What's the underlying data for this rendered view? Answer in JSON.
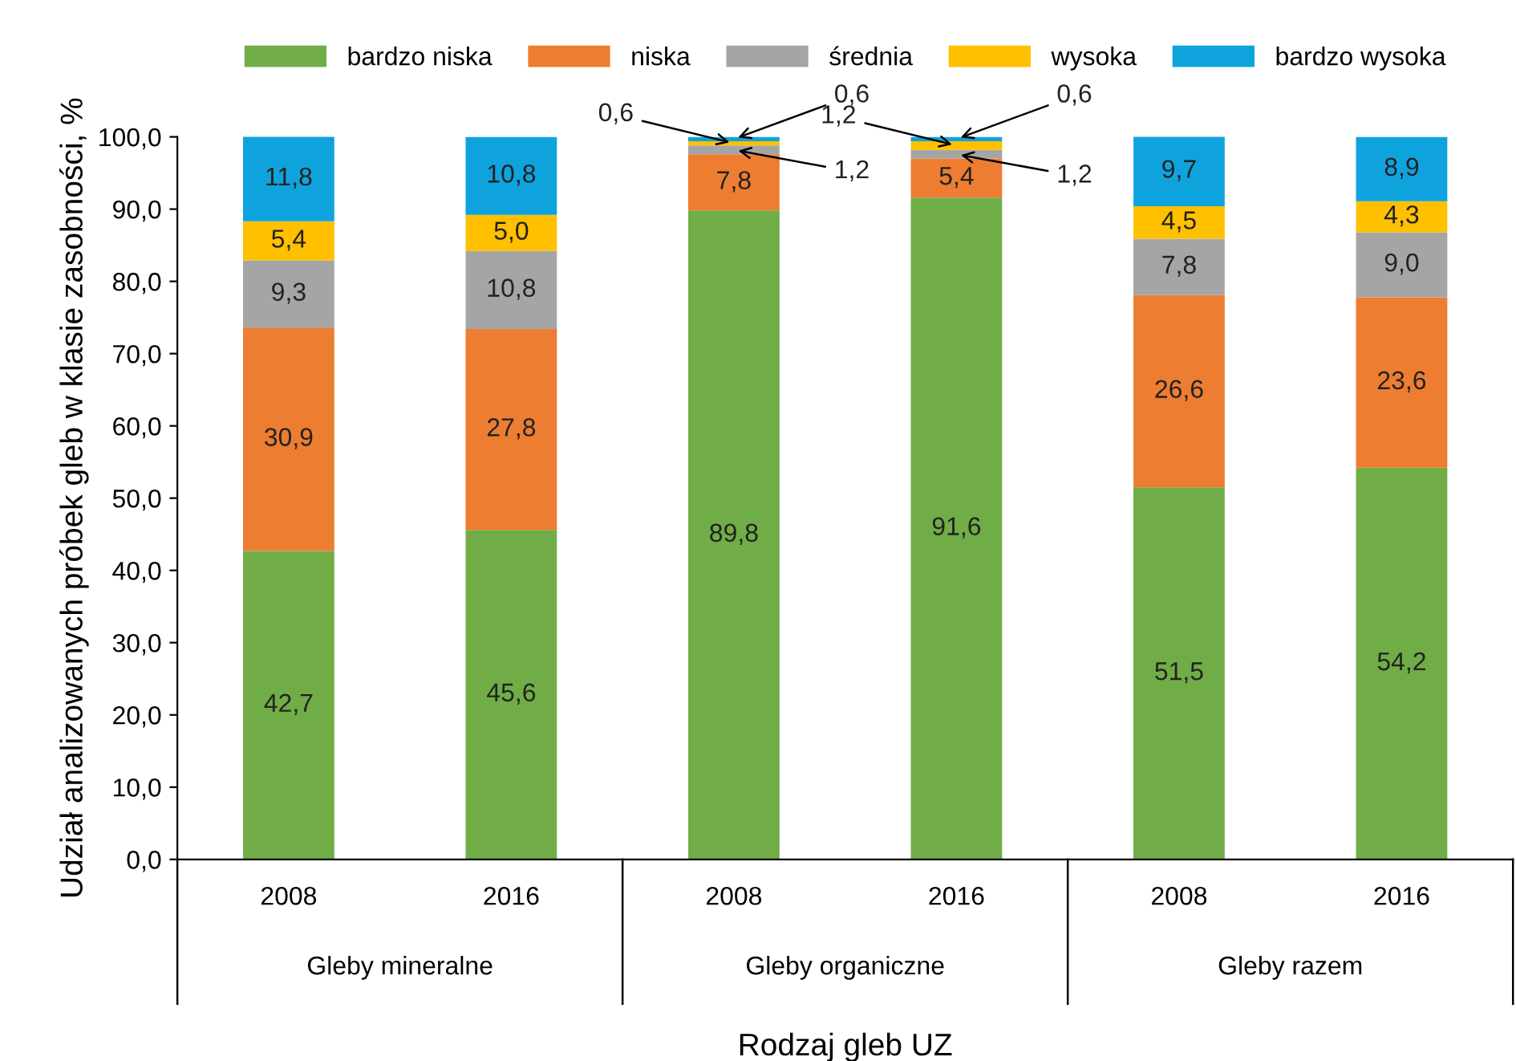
{
  "chart_data": {
    "type": "bar",
    "stacked": true,
    "categories": [
      "2008",
      "2016",
      "2008",
      "2016",
      "2008",
      "2016"
    ],
    "annotations": [
      "Gleby mineralne",
      "Gleby organiczne",
      "Gleby razem"
    ],
    "xlabel": "Rodzaj gleb UZ",
    "ylabel": "Udział analizowanych próbek gleb w klasie zasobności, %",
    "ylim": [
      0,
      100
    ],
    "yticks": [
      {
        "value": 0,
        "label": "0,0"
      },
      {
        "value": 10,
        "label": "10,0"
      },
      {
        "value": 20,
        "label": "20,0"
      },
      {
        "value": 30,
        "label": "30,0"
      },
      {
        "value": 40,
        "label": "40,0"
      },
      {
        "value": 50,
        "label": "50,0"
      },
      {
        "value": 60,
        "label": "60,0"
      },
      {
        "value": 70,
        "label": "70,0"
      },
      {
        "value": 80,
        "label": "80,0"
      },
      {
        "value": 90,
        "label": "90,0"
      },
      {
        "value": 100,
        "label": "100,0"
      }
    ],
    "legend": "top",
    "grid": false,
    "series": [
      {
        "name": "bardzo niska",
        "color": "#70ad47",
        "values": [
          42.7,
          45.6,
          89.8,
          91.6,
          51.5,
          54.2
        ],
        "value_labels": [
          "42,7",
          "45,6",
          "89,8",
          "91,6",
          "51,5",
          "54,2"
        ]
      },
      {
        "name": "niska",
        "color": "#ed7d31",
        "values": [
          30.9,
          27.8,
          7.8,
          5.4,
          26.6,
          23.6
        ],
        "value_labels": [
          "30,9",
          "27,8",
          "7,8",
          "5,4",
          "26,6",
          "23,6"
        ]
      },
      {
        "name": "średnia",
        "color": "#a5a5a5",
        "values": [
          9.3,
          10.8,
          1.2,
          1.2,
          7.8,
          9.0
        ],
        "value_labels": [
          "9,3",
          "10,8",
          "1,2",
          "1,2",
          "7,8",
          "9,0"
        ]
      },
      {
        "name": "wysoka",
        "color": "#ffc000",
        "values": [
          5.4,
          5.0,
          0.6,
          1.2,
          4.5,
          4.3
        ],
        "value_labels": [
          "5,4",
          "5,0",
          "0,6",
          "1,2",
          "4,5",
          "4,3"
        ]
      },
      {
        "name": "bardzo wysoka",
        "color": "#0fa3de",
        "values": [
          11.8,
          10.8,
          0.6,
          0.6,
          9.7,
          8.9
        ],
        "value_labels": [
          "11,8",
          "10,8",
          "0,6",
          "0,6",
          "9,7",
          "8,9"
        ]
      }
    ]
  }
}
